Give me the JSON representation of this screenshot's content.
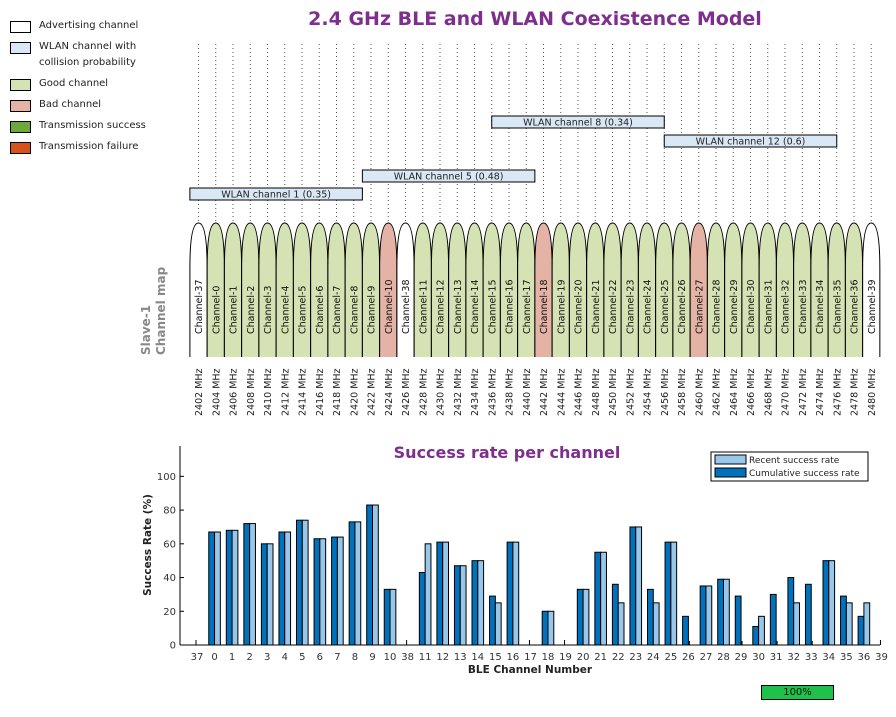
{
  "header": {
    "title": "2.4 GHz BLE and WLAN Coexistence Model"
  },
  "legend": {
    "items": [
      {
        "label": "Advertising channel",
        "color": "#ffffff"
      },
      {
        "label": "WLAN channel with\ncollision probability",
        "color": "#dae8f5"
      },
      {
        "label": "Good channel",
        "color": "#d4e2b4"
      },
      {
        "label": "Bad channel",
        "color": "#e5b3a5"
      },
      {
        "label": "Transmission success",
        "color": "#6fa83a"
      },
      {
        "label": "Transmission failure",
        "color": "#d95319"
      }
    ]
  },
  "channel_map": {
    "ylabel_line1": "Slave-1",
    "ylabel_line2": "Channel map",
    "channels": [
      {
        "label": "Channel-37",
        "freq": "2402 MHz",
        "state": "advertising"
      },
      {
        "label": "Channel-0",
        "freq": "2404 MHz",
        "state": "good"
      },
      {
        "label": "Channel-1",
        "freq": "2406 MHz",
        "state": "good"
      },
      {
        "label": "Channel-2",
        "freq": "2408 MHz",
        "state": "good"
      },
      {
        "label": "Channel-3",
        "freq": "2410 MHz",
        "state": "good"
      },
      {
        "label": "Channel-4",
        "freq": "2412 MHz",
        "state": "good"
      },
      {
        "label": "Channel-5",
        "freq": "2414 MHz",
        "state": "good"
      },
      {
        "label": "Channel-6",
        "freq": "2416 MHz",
        "state": "good"
      },
      {
        "label": "Channel-7",
        "freq": "2418 MHz",
        "state": "good"
      },
      {
        "label": "Channel-8",
        "freq": "2420 MHz",
        "state": "good"
      },
      {
        "label": "Channel-9",
        "freq": "2422 MHz",
        "state": "good"
      },
      {
        "label": "Channel-10",
        "freq": "2424 MHz",
        "state": "bad"
      },
      {
        "label": "Channel-38",
        "freq": "2426 MHz",
        "state": "advertising"
      },
      {
        "label": "Channel-11",
        "freq": "2428 MHz",
        "state": "good"
      },
      {
        "label": "Channel-12",
        "freq": "2430 MHz",
        "state": "good"
      },
      {
        "label": "Channel-13",
        "freq": "2432 MHz",
        "state": "good"
      },
      {
        "label": "Channel-14",
        "freq": "2434 MHz",
        "state": "good"
      },
      {
        "label": "Channel-15",
        "freq": "2436 MHz",
        "state": "good"
      },
      {
        "label": "Channel-16",
        "freq": "2438 MHz",
        "state": "good"
      },
      {
        "label": "Channel-17",
        "freq": "2440 MHz",
        "state": "good"
      },
      {
        "label": "Channel-18",
        "freq": "2442 MHz",
        "state": "bad"
      },
      {
        "label": "Channel-19",
        "freq": "2444 MHz",
        "state": "good"
      },
      {
        "label": "Channel-20",
        "freq": "2446 MHz",
        "state": "good"
      },
      {
        "label": "Channel-21",
        "freq": "2448 MHz",
        "state": "good"
      },
      {
        "label": "Channel-22",
        "freq": "2450 MHz",
        "state": "good"
      },
      {
        "label": "Channel-23",
        "freq": "2452 MHz",
        "state": "good"
      },
      {
        "label": "Channel-24",
        "freq": "2454 MHz",
        "state": "good"
      },
      {
        "label": "Channel-25",
        "freq": "2456 MHz",
        "state": "good"
      },
      {
        "label": "Channel-26",
        "freq": "2458 MHz",
        "state": "good"
      },
      {
        "label": "Channel-27",
        "freq": "2460 MHz",
        "state": "bad"
      },
      {
        "label": "Channel-28",
        "freq": "2462 MHz",
        "state": "good"
      },
      {
        "label": "Channel-29",
        "freq": "2464 MHz",
        "state": "good"
      },
      {
        "label": "Channel-30",
        "freq": "2466 MHz",
        "state": "good"
      },
      {
        "label": "Channel-31",
        "freq": "2468 MHz",
        "state": "good"
      },
      {
        "label": "Channel-32",
        "freq": "2470 MHz",
        "state": "good"
      },
      {
        "label": "Channel-33",
        "freq": "2472 MHz",
        "state": "good"
      },
      {
        "label": "Channel-34",
        "freq": "2474 MHz",
        "state": "good"
      },
      {
        "label": "Channel-35",
        "freq": "2476 MHz",
        "state": "good"
      },
      {
        "label": "Channel-36",
        "freq": "2478 MHz",
        "state": "good"
      },
      {
        "label": "Channel-39",
        "freq": "2480 MHz",
        "state": "advertising"
      }
    ],
    "wlan_channels": [
      {
        "label": "WLAN channel 1 (0.35)",
        "start_mhz": 2401,
        "end_mhz": 2421,
        "row": 0
      },
      {
        "label": "WLAN channel 5 (0.48)",
        "start_mhz": 2421,
        "end_mhz": 2441,
        "row": 1
      },
      {
        "label": "WLAN channel 8 (0.34)",
        "start_mhz": 2436,
        "end_mhz": 2456,
        "row": 3
      },
      {
        "label": "WLAN channel 12 (0.6)",
        "start_mhz": 2456,
        "end_mhz": 2476,
        "row": 2
      }
    ]
  },
  "chart_data": {
    "type": "bar",
    "title": "Success rate per channel",
    "xlabel": "BLE Channel Number",
    "ylabel": "Success Rate (%)",
    "ylim": [
      0,
      118
    ],
    "yticks": [
      0,
      20,
      40,
      60,
      80,
      100
    ],
    "grid": false,
    "legend_position": "top-right",
    "categories": [
      "37",
      "0",
      "1",
      "2",
      "3",
      "4",
      "5",
      "6",
      "7",
      "8",
      "9",
      "10",
      "38",
      "11",
      "12",
      "13",
      "14",
      "15",
      "16",
      "17",
      "18",
      "19",
      "20",
      "21",
      "22",
      "23",
      "24",
      "25",
      "26",
      "27",
      "28",
      "29",
      "30",
      "31",
      "32",
      "33",
      "34",
      "35",
      "36",
      "39"
    ],
    "series": [
      {
        "name": "Recent success rate",
        "color": "#99c7ea",
        "values": [
          0,
          67,
          68,
          72,
          60,
          67,
          74,
          63,
          64,
          73,
          83,
          33,
          0,
          60,
          61,
          47,
          50,
          25,
          61,
          0,
          20,
          0,
          33,
          55,
          25,
          70,
          25,
          61,
          0,
          35,
          39,
          0,
          17,
          0,
          25,
          0,
          50,
          25,
          25,
          0
        ]
      },
      {
        "name": "Cumulative success rate",
        "color": "#0072bd",
        "values": [
          0,
          67,
          68,
          72,
          60,
          67,
          74,
          63,
          64,
          73,
          83,
          33,
          0,
          43,
          61,
          47,
          50,
          29,
          61,
          0,
          20,
          0,
          33,
          55,
          36,
          70,
          33,
          61,
          17,
          35,
          39,
          29,
          11,
          30,
          40,
          36,
          50,
          29,
          17,
          0
        ]
      }
    ]
  },
  "progress": {
    "label": "100%",
    "value": 1.0
  }
}
